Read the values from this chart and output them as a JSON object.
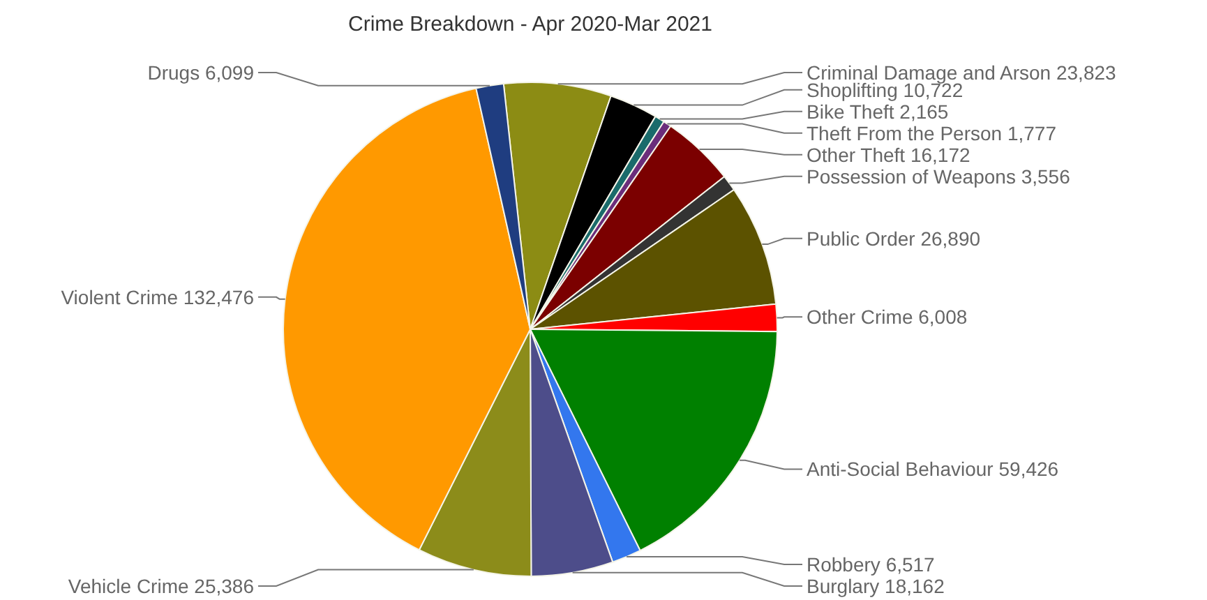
{
  "chart_data": {
    "type": "pie",
    "title": "Crime Breakdown - Apr 2020-Mar 2021",
    "categories": [
      "Criminal Damage and Arson",
      "Shoplifting",
      "Bike Theft",
      "Theft From the Person",
      "Other Theft",
      "Possession of Weapons",
      "Public Order",
      "Other Crime",
      "Anti-Social Behaviour",
      "Robbery",
      "Burglary",
      "Vehicle Crime",
      "Violent Crime",
      "Drugs"
    ],
    "values": [
      23823,
      10722,
      2165,
      1777,
      16172,
      3556,
      26890,
      6008,
      59426,
      6517,
      18162,
      25386,
      132476,
      6099
    ],
    "colors": [
      "#8c8c14",
      "#000000",
      "#1a6b6b",
      "#6b2d7b",
      "#7b0000",
      "#333333",
      "#5c5200",
      "#ff0000",
      "#008000",
      "#3377ee",
      "#4d4d8a",
      "#8c8c1a",
      "#ff9900",
      "#1f3d80"
    ],
    "value_labels": [
      "23,823",
      "10,722",
      "2,165",
      "1,777",
      "16,172",
      "3,556",
      "26,890",
      "6,008",
      "59,426",
      "6,517",
      "18,162",
      "25,386",
      "132,476",
      "6,099"
    ]
  }
}
